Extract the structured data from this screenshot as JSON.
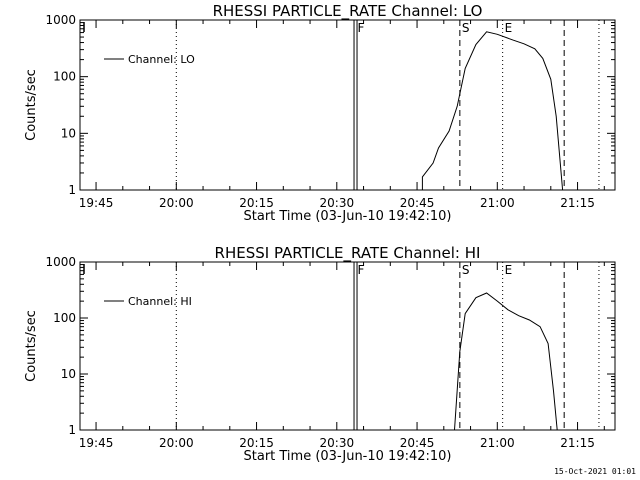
{
  "footer_date": "15-Oct-2021 01:01",
  "chart_data": [
    {
      "type": "line",
      "title": "RHESSI PARTICLE_RATE Channel: LO",
      "xlabel": "Start Time (03-Jun-10 19:42:10)",
      "ylabel": "Counts/sec",
      "yscale": "log",
      "ylim": [
        1,
        1000
      ],
      "xlim": [
        "19:42",
        "21:22"
      ],
      "x_ticks": [
        "19:45",
        "20:00",
        "20:15",
        "20:30",
        "20:45",
        "21:00",
        "21:15"
      ],
      "y_ticks": [
        "1",
        "10",
        "100",
        "1000"
      ],
      "legend": {
        "position": "top-left",
        "label": "Channel: LO"
      },
      "markers": [
        {
          "time": "20:33.5",
          "label": "F",
          "style": "double-solid"
        },
        {
          "time": "20:53",
          "label": "S",
          "style": "dashed"
        },
        {
          "time": "21:01",
          "label": "E",
          "style": "dotted"
        },
        {
          "time": "21:12.5",
          "label": "",
          "style": "dashed"
        }
      ],
      "gridlines": [
        {
          "time": "20:00",
          "style": "dotted"
        },
        {
          "time": "21:19",
          "style": "dotted"
        }
      ],
      "series": [
        {
          "name": "Channel: LO",
          "x": [
            "20:46",
            "20:46",
            "20:48",
            "20:49",
            "20:51",
            "20:52.5",
            "20:54",
            "20:56",
            "20:58",
            "21:00",
            "21:03",
            "21:05",
            "21:07",
            "21:08.5",
            "21:10",
            "21:11",
            "21:12.2"
          ],
          "y": [
            1,
            1.7,
            3,
            5.5,
            11,
            30,
            140,
            370,
            620,
            560,
            440,
            380,
            310,
            210,
            90,
            20,
            1
          ]
        }
      ]
    },
    {
      "type": "line",
      "title": "RHESSI PARTICLE_RATE Channel: HI",
      "xlabel": "Start Time (03-Jun-10 19:42:10)",
      "ylabel": "Counts/sec",
      "yscale": "log",
      "ylim": [
        1,
        1000
      ],
      "xlim": [
        "19:42",
        "21:22"
      ],
      "x_ticks": [
        "19:45",
        "20:00",
        "20:15",
        "20:30",
        "20:45",
        "21:00",
        "21:15"
      ],
      "y_ticks": [
        "1",
        "10",
        "100",
        "1000"
      ],
      "legend": {
        "position": "top-left",
        "label": "Channel: HI"
      },
      "markers": [
        {
          "time": "20:33.5",
          "label": "F",
          "style": "double-solid"
        },
        {
          "time": "20:53",
          "label": "S",
          "style": "dashed"
        },
        {
          "time": "21:01",
          "label": "E",
          "style": "dotted"
        },
        {
          "time": "21:12.5",
          "label": "",
          "style": "dashed"
        }
      ],
      "gridlines": [
        {
          "time": "20:00",
          "style": "dotted"
        },
        {
          "time": "21:19",
          "style": "dotted"
        }
      ],
      "series": [
        {
          "name": "Channel: HI",
          "x": [
            "20:52",
            "20:53",
            "20:54",
            "20:56",
            "20:58",
            "21:00",
            "21:02",
            "21:04",
            "21:06",
            "21:08",
            "21:09.5",
            "21:10.5",
            "21:11.2"
          ],
          "y": [
            1,
            25,
            120,
            230,
            280,
            200,
            140,
            110,
            92,
            70,
            35,
            5,
            1
          ]
        }
      ]
    }
  ]
}
